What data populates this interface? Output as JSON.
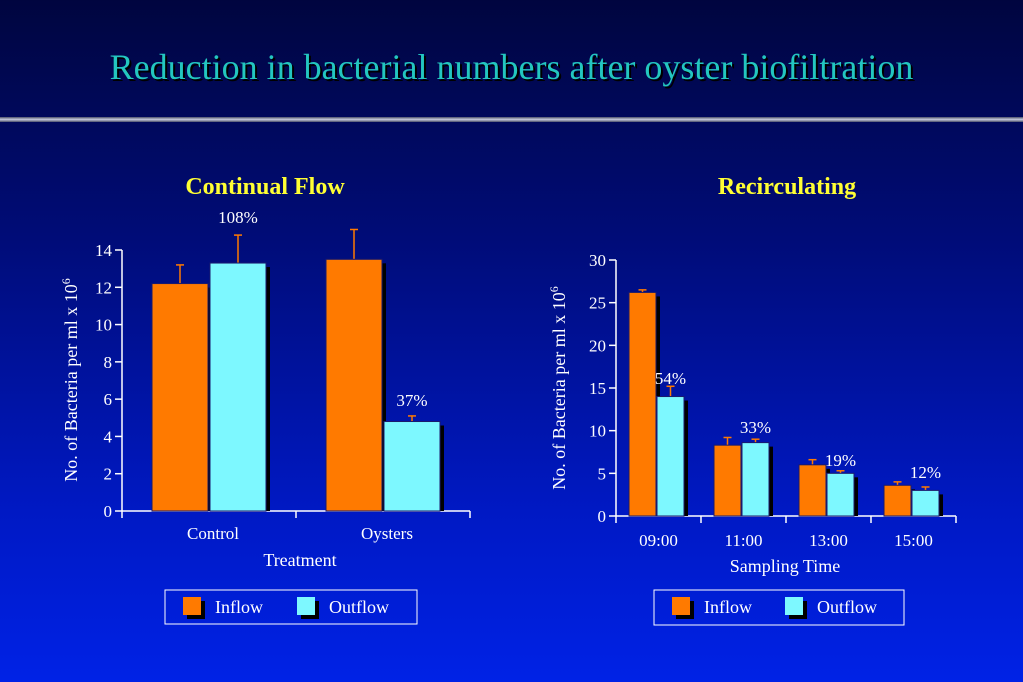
{
  "page_title": "Reduction in bacterial numbers after oyster biofiltration",
  "colors": {
    "inflow": "#ff7a00",
    "outflow": "#7df8ff",
    "title": "#23c6c0",
    "chart_title": "#ffff33",
    "error_bar": "#ff7a00",
    "axis": "#ffffff"
  },
  "chart_data": [
    {
      "type": "bar",
      "title": "Continual Flow",
      "xlabel": "Treatment",
      "ylabel": "No. of Bacteria per ml x 10",
      "ylabel_sup": "6",
      "categories": [
        "Control",
        "Oysters"
      ],
      "ylim": [
        0,
        14
      ],
      "yticks": [
        "0",
        "2",
        "4",
        "6",
        "8",
        "10",
        "12",
        "14"
      ],
      "series": [
        {
          "name": "Inflow",
          "values": [
            12.2,
            13.5
          ],
          "errors": [
            1.0,
            1.6
          ]
        },
        {
          "name": "Outflow",
          "values": [
            13.3,
            4.8
          ],
          "errors": [
            1.5,
            0.3
          ]
        }
      ],
      "annotations": [
        "108%",
        "37%"
      ],
      "legend": [
        "Inflow",
        "Outflow"
      ],
      "legend_position": "bottom"
    },
    {
      "type": "bar",
      "title": "Recirculating",
      "xlabel": "Sampling Time",
      "ylabel": "No. of Bacteria per ml x 10",
      "ylabel_sup": "6",
      "categories": [
        "09:00",
        "11:00",
        "13:00",
        "15:00"
      ],
      "ylim": [
        0,
        30
      ],
      "yticks": [
        "0",
        "5",
        "10",
        "15",
        "20",
        "25",
        "30"
      ],
      "series": [
        {
          "name": "Inflow",
          "values": [
            26.2,
            8.3,
            6.0,
            3.6
          ],
          "errors": [
            0.3,
            0.9,
            0.6,
            0.4
          ]
        },
        {
          "name": "Outflow",
          "values": [
            14.0,
            8.6,
            5.0,
            3.0
          ],
          "errors": [
            1.2,
            0.4,
            0.3,
            0.4
          ]
        }
      ],
      "annotations": [
        "54%",
        "33%",
        "19%",
        "12%"
      ],
      "legend": [
        "Inflow",
        "Outflow"
      ],
      "legend_position": "bottom"
    }
  ]
}
